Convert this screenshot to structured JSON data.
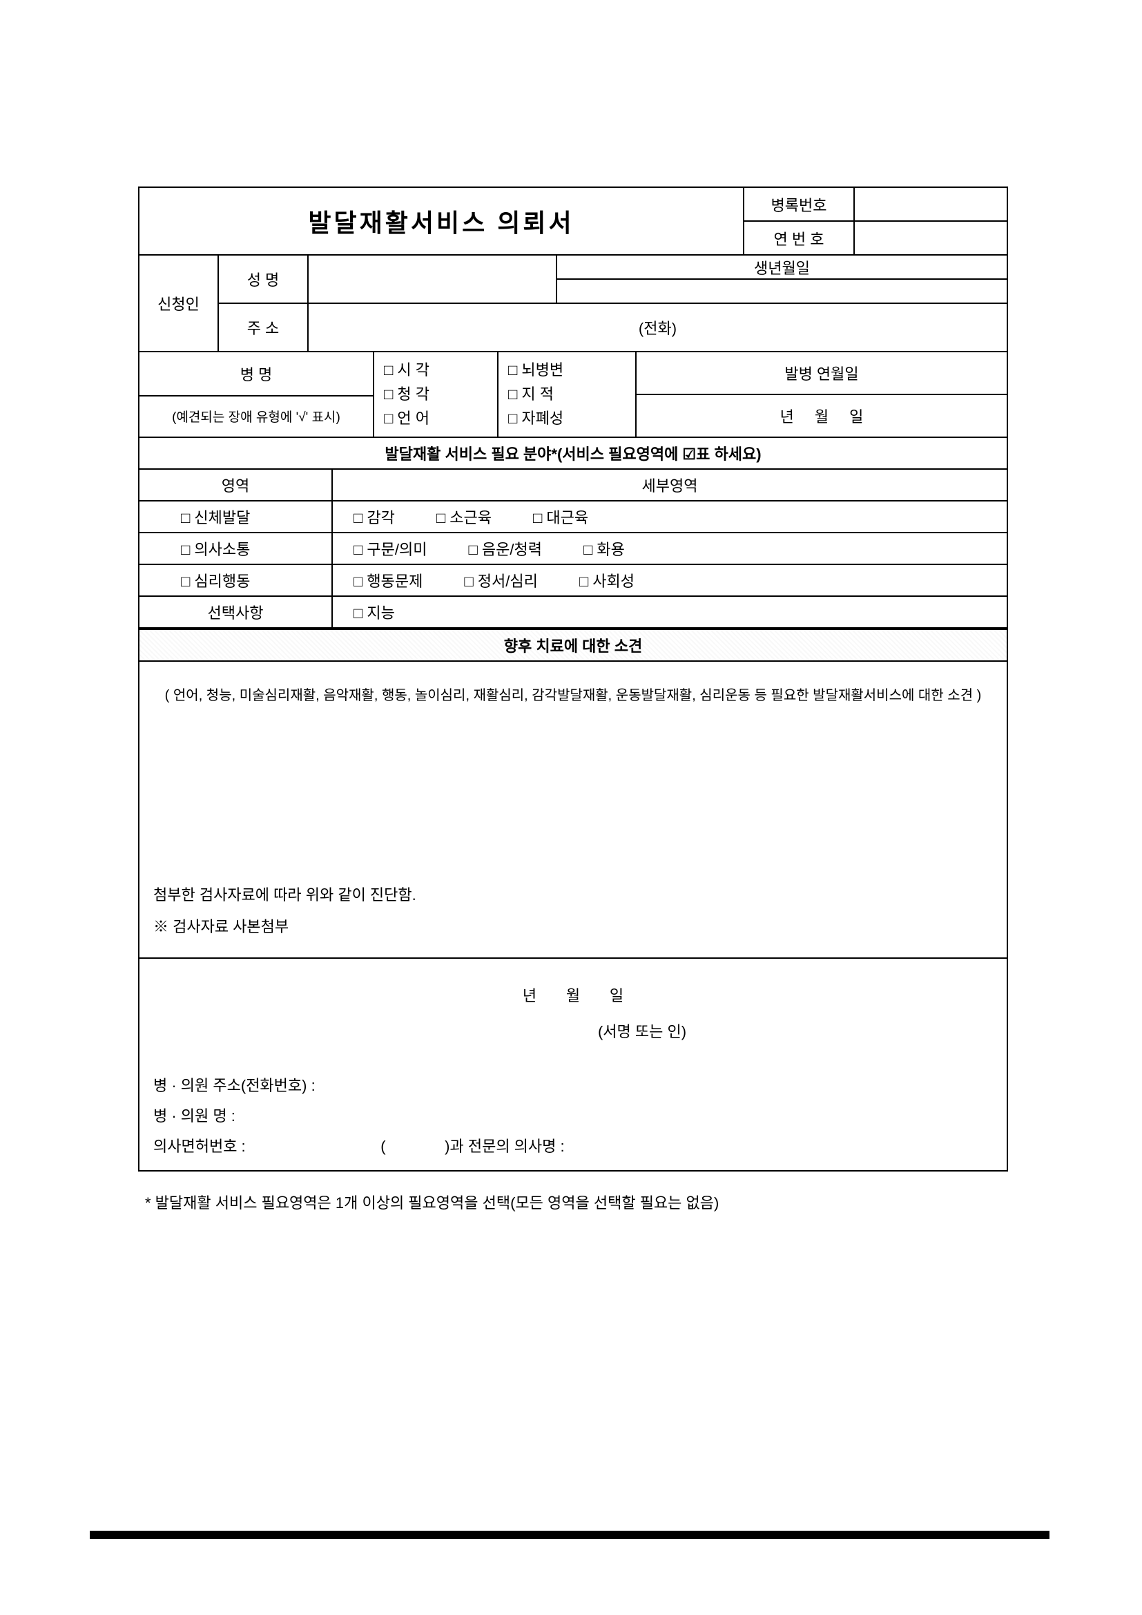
{
  "title": "발달재활서비스 의뢰서",
  "header": {
    "record_no_label": "병록번호",
    "serial_no_label": "연 번 호"
  },
  "applicant": {
    "section_label": "신청인",
    "name_label": "성   명",
    "birth_label": "생년월일",
    "address_label": "주   소",
    "phone_label": "(전화)"
  },
  "disease": {
    "name_label": "병   명",
    "note": "(예견되는 장애 유형에 '√' 표시)",
    "opts_col1": [
      "□ 시  각",
      "□ 청  각",
      "□ 언  어"
    ],
    "opts_col2": [
      "□ 뇌병변",
      "□ 지  적",
      "□ 자폐성"
    ],
    "onset_label": "발병 연월일",
    "date_y": "년",
    "date_m": "월",
    "date_d": "일"
  },
  "need_area": {
    "header": "발달재활 서비스 필요 분야*(서비스 필요영역에 ☑표 하세요)",
    "col1": "영역",
    "col2": "세부영역",
    "rows": [
      {
        "label": "□ 신체발달",
        "items": [
          "□ 감각",
          "□ 소근육",
          "□ 대근육"
        ]
      },
      {
        "label": "□ 의사소통",
        "items": [
          "□ 구문/의미",
          "□ 음운/청력",
          "□ 화용"
        ]
      },
      {
        "label": "□ 심리행동",
        "items": [
          "□ 행동문제",
          "□ 정서/심리",
          "□ 사회성"
        ]
      },
      {
        "label": "선택사항",
        "items": [
          "□ 지능"
        ]
      }
    ]
  },
  "opinion": {
    "header": "향후 치료에 대한 소견",
    "body": "( 언어, 청능, 미술심리재활, 음악재활, 행동, 놀이심리, 재활심리, 감각발달재활, 운동발달재활, 심리운동 등 필요한 발달재활서비스에 대한 소견 )"
  },
  "diagnosis_line": "첨부한 검사자료에 따라 위와 같이 진단함.",
  "note_line": "※ 검사자료 사본첨부",
  "date_parts": {
    "y": "년",
    "m": "월",
    "d": "일"
  },
  "signature_label": "(서명 또는 인)",
  "hospital": {
    "addr_label": "병 · 의원 주소(전화번호) :",
    "name_label": "병 · 의원 명 :",
    "license_label": "의사면허번호 :",
    "dept_open": "(",
    "dept_label": ")과 전문의 의사명 :"
  },
  "footnote": "* 발달재활 서비스 필요영역은 1개 이상의 필요영역을 선택(모든 영역을 선택할 필요는 없음)"
}
